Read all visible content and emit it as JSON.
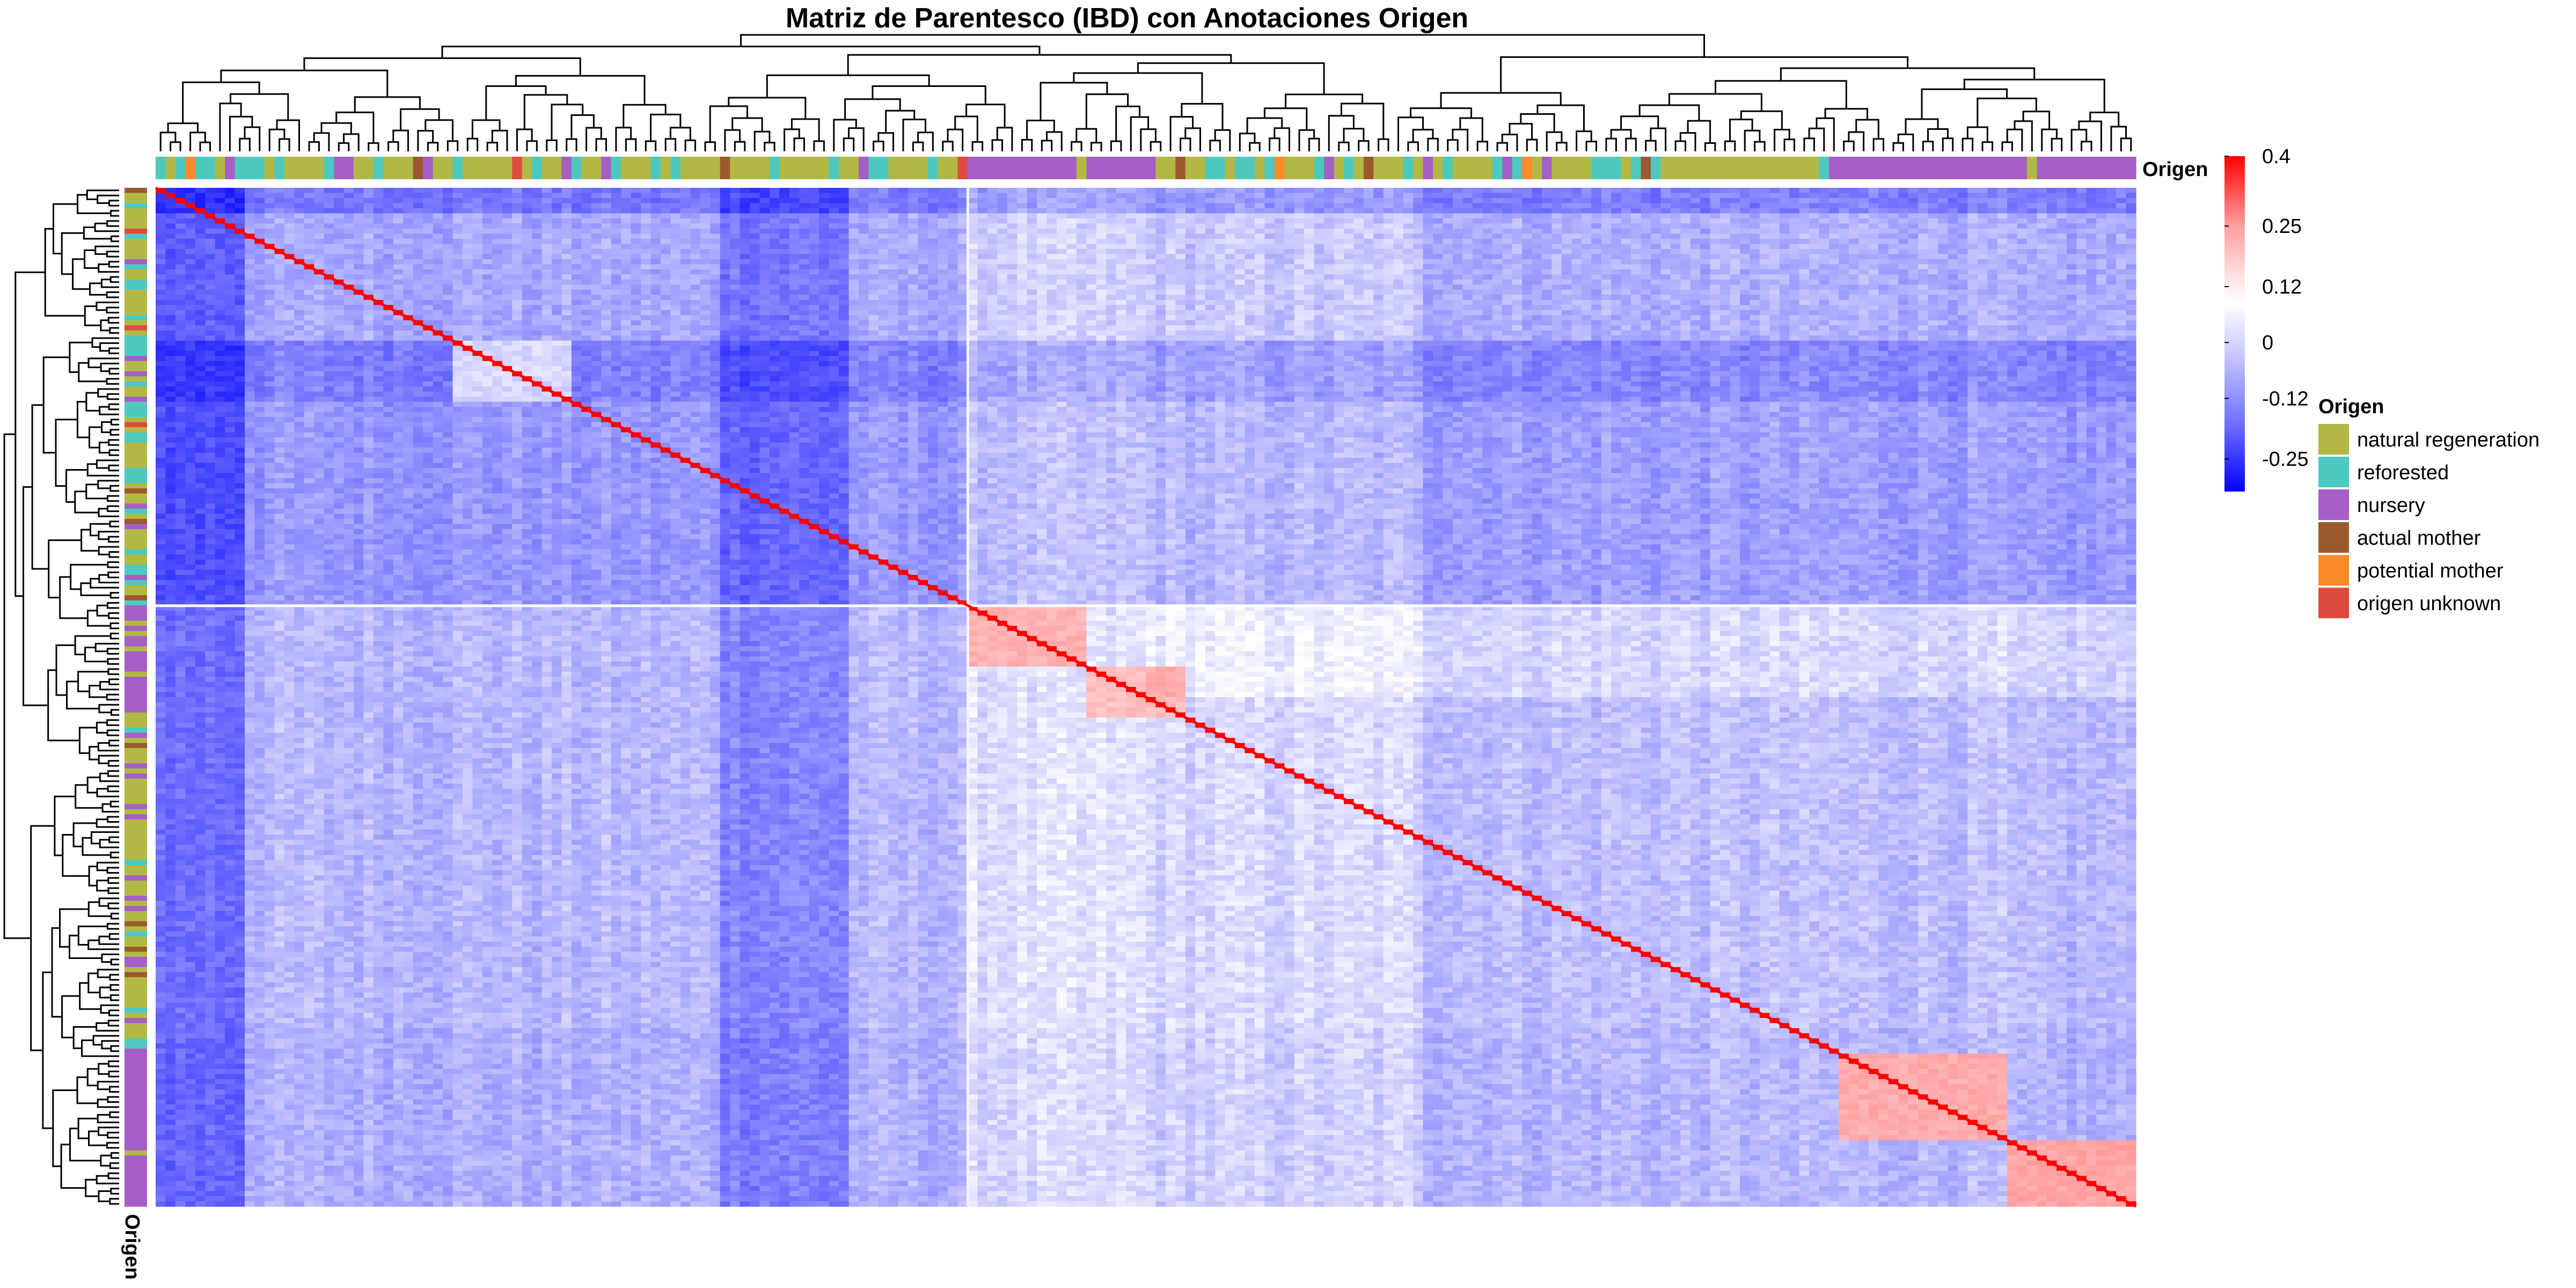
{
  "chart_data": {
    "type": "heatmap",
    "title": "Matriz de Parentesco (IBD) con Anotaciones Origen",
    "matrix_kind": "symmetric kinship matrix, hierarchically clustered (rows and columns dendrograms)",
    "color_scale": {
      "ticks": [
        "0.4",
        "0.25",
        "0.12",
        "0",
        "-0.12",
        "-0.25"
      ],
      "tick_values": [
        0.4,
        0.25,
        0.12,
        0,
        -0.12,
        -0.25
      ],
      "range": [
        -0.32,
        0.4
      ],
      "low_color": "#0000FF",
      "mid_color": "#FFFFFF",
      "high_color": "#FF0000"
    },
    "annotation": {
      "name": "Origen",
      "legend_title": "Origen",
      "categories": [
        {
          "label": "natural regeneration",
          "color": "#B2B844"
        },
        {
          "label": "reforested",
          "color": "#4DC9C0"
        },
        {
          "label": "nursery",
          "color": "#A65FC6"
        },
        {
          "label": "actual mother",
          "color": "#9A5A2E"
        },
        {
          "label": "potential mother",
          "color": "#FF8A2A"
        },
        {
          "label": "origen unknown",
          "color": "#DE4B3E"
        }
      ]
    },
    "approx_values": {
      "diagonal": 0.4,
      "typical_background": -0.1,
      "natural_regeneration_block": -0.15,
      "nursery_sibling_blocks": 0.12
    }
  }
}
